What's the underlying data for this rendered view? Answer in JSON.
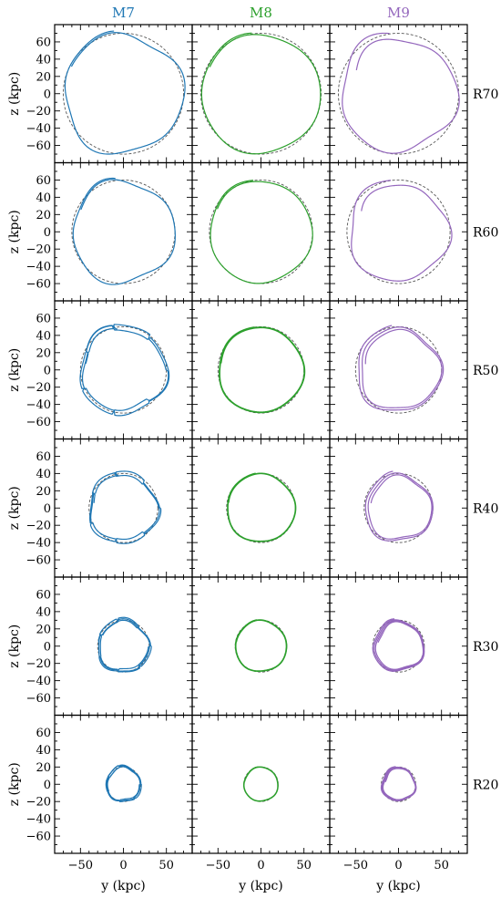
{
  "chart_data": {
    "type": "line",
    "columns": [
      {
        "label": "M7",
        "color": "#1f77b4"
      },
      {
        "label": "M8",
        "color": "#2ca02c"
      },
      {
        "label": "M9",
        "color": "#9467bd"
      }
    ],
    "rows": [
      {
        "label": "R70",
        "radius": 70
      },
      {
        "label": "R60",
        "radius": 60
      },
      {
        "label": "R50",
        "radius": 50
      },
      {
        "label": "R40",
        "radius": 40
      },
      {
        "label": "R30",
        "radius": 30
      },
      {
        "label": "R20",
        "radius": 20
      }
    ],
    "xlabel": "y (kpc)",
    "ylabel": "z (kpc)",
    "xlim": [
      -80,
      80
    ],
    "ylim": [
      -80,
      80
    ],
    "xticks": [
      -50,
      0,
      50
    ],
    "yticks": [
      60,
      40,
      20,
      0,
      -20,
      -40,
      -60
    ],
    "reference_circle": "dashed",
    "reference_color": "#555555"
  }
}
